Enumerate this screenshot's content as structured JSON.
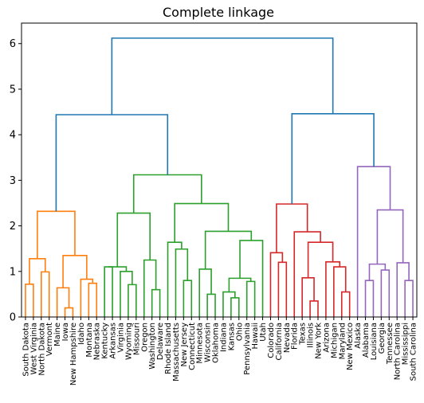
{
  "chart_data": {
    "type": "dendrogram",
    "title": "Complete linkage",
    "xlabel": "",
    "ylabel": "",
    "ylim": [
      0,
      6.45
    ],
    "yticks": [
      0,
      1,
      2,
      3,
      4,
      5,
      6
    ],
    "grid": false,
    "leaves": [
      "South Dakota",
      "West Virginia",
      "North Dakota",
      "Vermont",
      "Maine",
      "Iowa",
      "New Hampshire",
      "Idaho",
      "Montana",
      "Nebraska",
      "Kentucky",
      "Arkansas",
      "Virginia",
      "Wyoming",
      "Missouri",
      "Oregon",
      "Washington",
      "Delaware",
      "Rhode Island",
      "Massachusetts",
      "New Jersey",
      "Connecticut",
      "Minnesota",
      "Wisconsin",
      "Oklahoma",
      "Indiana",
      "Kansas",
      "Ohio",
      "Pennsylvania",
      "Hawaii",
      "Utah",
      "Colorado",
      "California",
      "Nevada",
      "Florida",
      "Texas",
      "Illinois",
      "New York",
      "Arizona",
      "Michigan",
      "Maryland",
      "New Mexico",
      "Alaska",
      "Alabama",
      "Louisiana",
      "Georgia",
      "Tennessee",
      "North Carolina",
      "Mississippi",
      "South Carolina"
    ],
    "colors": {
      "orange": "#ff7f0e",
      "green": "#2ca02c",
      "red": "#d62728",
      "purple": "#9467bd",
      "blue": "#1f77b4"
    },
    "links": [
      {
        "a": 0,
        "b": 1,
        "h": 0.72,
        "c": "orange"
      },
      {
        "a": 50,
        "b": 2,
        "h": 1.28,
        "c": "orange"
      },
      {
        "a": 3,
        "b": 51,
        "h": 0.99,
        "c": "orange"
      },
      {
        "a": 5,
        "b": 6,
        "h": 0.2,
        "c": "orange"
      },
      {
        "a": 4,
        "b": 53,
        "h": 0.64,
        "c": "orange"
      },
      {
        "a": 7,
        "b": 8,
        "h": 0.83,
        "c": "orange"
      },
      {
        "a": 9,
        "b": 10,
        "h": 0.75,
        "c": "orange"
      },
      {
        "a": 55,
        "b": 56,
        "h": 0.82,
        "c": "orange"
      },
      {
        "a": 54,
        "b": 57,
        "h": 1.35,
        "c": "orange"
      },
      {
        "a": 52,
        "b": 58,
        "h": 2.32,
        "c": "orange"
      },
      {
        "a": 11,
        "b": 12,
        "h": 1.1,
        "c": "green"
      },
      {
        "a": 14,
        "b": 15,
        "h": 0.71,
        "c": "green"
      },
      {
        "a": 13,
        "b": 61,
        "h": 1.0,
        "c": "green"
      },
      {
        "a": 60,
        "b": 62,
        "h": 1.08,
        "c": "green"
      },
      {
        "a": 16,
        "b": 17,
        "h": 0.6,
        "c": "green"
      },
      {
        "a": 18,
        "b": 64,
        "h": 1.27,
        "c": "green"
      },
      {
        "a": 63,
        "b": 65,
        "h": 2.28,
        "c": "green"
      },
      {
        "a": 20,
        "b": 21,
        "h": 0.8,
        "c": "green"
      },
      {
        "a": 19,
        "b": 67,
        "h": 1.49,
        "c": "green"
      },
      {
        "a": 66,
        "b": 68,
        "h": 1.64,
        "c": "green"
      },
      {
        "a": 23,
        "b": 24,
        "h": 0.5,
        "c": "green"
      },
      {
        "a": 22,
        "b": 70,
        "h": 1.05,
        "c": "green"
      },
      {
        "a": 26,
        "b": 27,
        "h": 0.42,
        "c": "green"
      },
      {
        "a": 25,
        "b": 72,
        "h": 0.55,
        "c": "green"
      },
      {
        "a": 28,
        "b": 29,
        "h": 0.78,
        "c": "green"
      },
      {
        "a": 73,
        "b": 74,
        "h": 0.85,
        "c": "green"
      },
      {
        "a": 30,
        "b": 31,
        "h": 1.09,
        "c": "green"
      },
      {
        "a": 75,
        "b": 76,
        "h": 1.68,
        "c": "green"
      },
      {
        "a": 71,
        "b": 77,
        "h": 1.88,
        "c": "green"
      },
      {
        "a": 69,
        "b": 78,
        "h": 2.49,
        "c": "green"
      },
      {
        "a": 66.5,
        "b": 79,
        "h": 3.12,
        "c": "green",
        "ax": 63,
        "bx": 79
      },
      {
        "a": 33,
        "b": 34,
        "h": 1.2,
        "c": "red"
      },
      {
        "a": 32,
        "b": 81,
        "h": 1.41,
        "c": "red"
      },
      {
        "a": 37,
        "b": 38,
        "h": 0.35,
        "c": "red"
      },
      {
        "a": 36,
        "b": 83,
        "h": 0.86,
        "c": "red"
      },
      {
        "a": 39,
        "b": 40,
        "h": 1.21,
        "c": "red"
      },
      {
        "a": 42,
        "b": 43,
        "h": 0.55,
        "c": "red"
      },
      {
        "a": 41,
        "b": 86,
        "h": 1.1,
        "c": "red"
      },
      {
        "a": 85,
        "b": 87,
        "h": 1.64,
        "c": "red"
      },
      {
        "a": 84,
        "b": 88,
        "h": 1.87,
        "c": "red"
      },
      {
        "a": 35,
        "b": 89,
        "h": 1.87,
        "c": "red"
      },
      {
        "a": 82,
        "b": 90,
        "h": 2.48,
        "c": "red"
      },
      {
        "a": 44,
        "b": 45,
        "h": 0.8,
        "c": "purple"
      },
      {
        "a": 47,
        "b": 48,
        "h": 1.03,
        "c": "purple"
      },
      {
        "a": 46,
        "b": 93,
        "h": 1.16,
        "c": "purple"
      },
      {
        "a": 50.5,
        "b": 51.5,
        "h": 0,
        "c": "none"
      },
      {
        "a": 49,
        "b": 50,
        "h": 0,
        "c": "none"
      },
      {
        "a": 0,
        "b": 0,
        "h": 0,
        "c": "none"
      }
    ]
  }
}
